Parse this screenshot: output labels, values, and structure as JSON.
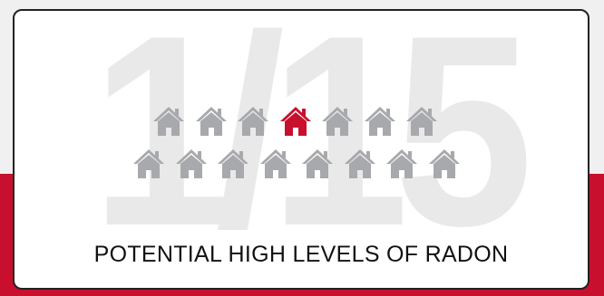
{
  "big_number": "1/15",
  "caption": "POTENTIAL HIGH LEVELS OF RADON",
  "colors": {
    "house_default": "#a7a9ac",
    "house_highlight": "#c8102e",
    "big_number": "#e9e9e9",
    "accent_band": "#c8102e"
  },
  "icon": "house-icon",
  "rows": [
    {
      "houses": [
        false,
        false,
        false,
        true,
        false,
        false,
        false
      ]
    },
    {
      "houses": [
        false,
        false,
        false,
        false,
        false,
        false,
        false,
        false
      ]
    }
  ]
}
